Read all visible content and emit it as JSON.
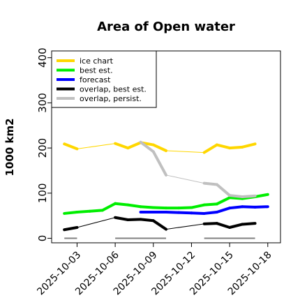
{
  "chart_data": {
    "type": "line",
    "title": "Area of Open water",
    "xlabel": "",
    "ylabel": "1000 km2",
    "ylim": [
      -10,
      415
    ],
    "yticks": [
      0,
      100,
      200,
      300,
      400
    ],
    "xlim": [
      "2025-10-01",
      "2025-10-19"
    ],
    "xticks": [
      "2025-10-03",
      "2025-10-06",
      "2025-10-09",
      "2025-10-12",
      "2025-10-15",
      "2025-10-18"
    ],
    "highlight_tick": {
      "label": "2025-10-09",
      "color": "#228b22"
    },
    "grid": false,
    "legend": "top-left",
    "series": [
      {
        "name": "ice chart",
        "color": "#ffd700",
        "points": [
          [
            "2025-10-02",
            209
          ],
          [
            "2025-10-03",
            198
          ],
          [
            "2025-10-06",
            210
          ],
          [
            "2025-10-07",
            200
          ],
          [
            "2025-10-08",
            212
          ],
          [
            "2025-10-09",
            207
          ],
          [
            "2025-10-10",
            194
          ],
          [
            "2025-10-13",
            190
          ],
          [
            "2025-10-14",
            207
          ],
          [
            "2025-10-15",
            200
          ],
          [
            "2025-10-16",
            202
          ],
          [
            "2025-10-17",
            209
          ]
        ]
      },
      {
        "name": "best est.",
        "color": "#00ee00",
        "points": [
          [
            "2025-10-02",
            55
          ],
          [
            "2025-10-03",
            58
          ],
          [
            "2025-10-04",
            60
          ],
          [
            "2025-10-05",
            62
          ],
          [
            "2025-10-06",
            77
          ],
          [
            "2025-10-07",
            74
          ],
          [
            "2025-10-08",
            70
          ],
          [
            "2025-10-09",
            68
          ],
          [
            "2025-10-10",
            67
          ],
          [
            "2025-10-11",
            67
          ],
          [
            "2025-10-12",
            68
          ],
          [
            "2025-10-13",
            74
          ],
          [
            "2025-10-14",
            76
          ],
          [
            "2025-10-15",
            90
          ],
          [
            "2025-10-16",
            88
          ],
          [
            "2025-10-17",
            92
          ],
          [
            "2025-10-18",
            97
          ]
        ]
      },
      {
        "name": "forecast",
        "color": "#0000ff",
        "points": [
          [
            "2025-10-08",
            58
          ],
          [
            "2025-10-09",
            58
          ],
          [
            "2025-10-10",
            58
          ],
          [
            "2025-10-11",
            57
          ],
          [
            "2025-10-12",
            56
          ],
          [
            "2025-10-13",
            55
          ],
          [
            "2025-10-14",
            58
          ],
          [
            "2025-10-15",
            67
          ],
          [
            "2025-10-16",
            70
          ],
          [
            "2025-10-17",
            69
          ],
          [
            "2025-10-18",
            70
          ]
        ]
      },
      {
        "name": "overlap, best est.",
        "color": "#000000",
        "points": [
          [
            "2025-10-02",
            19
          ],
          [
            "2025-10-03",
            24
          ],
          [
            "2025-10-06",
            46
          ],
          [
            "2025-10-07",
            41
          ],
          [
            "2025-10-08",
            42
          ],
          [
            "2025-10-09",
            39
          ],
          [
            "2025-10-10",
            20
          ],
          [
            "2025-10-13",
            32
          ],
          [
            "2025-10-14",
            33
          ],
          [
            "2025-10-15",
            24
          ],
          [
            "2025-10-16",
            31
          ],
          [
            "2025-10-17",
            33
          ]
        ]
      },
      {
        "name": "overlap, persist.",
        "color": "#c0c0c0",
        "points": [
          [
            "2025-10-08",
            213
          ],
          [
            "2025-10-09",
            192
          ],
          [
            "2025-10-10",
            140
          ],
          [
            "2025-10-13",
            122
          ],
          [
            "2025-10-14",
            119
          ],
          [
            "2025-10-15",
            95
          ],
          [
            "2025-10-16",
            92
          ],
          [
            "2025-10-17",
            94
          ]
        ]
      }
    ],
    "zero_segments": [
      {
        "color": "#808080",
        "from": "2025-10-02",
        "to": "2025-10-03"
      },
      {
        "color": "#808080",
        "from": "2025-10-06",
        "to": "2025-10-10"
      },
      {
        "color": "#808080",
        "from": "2025-10-13",
        "to": "2025-10-17"
      }
    ]
  }
}
